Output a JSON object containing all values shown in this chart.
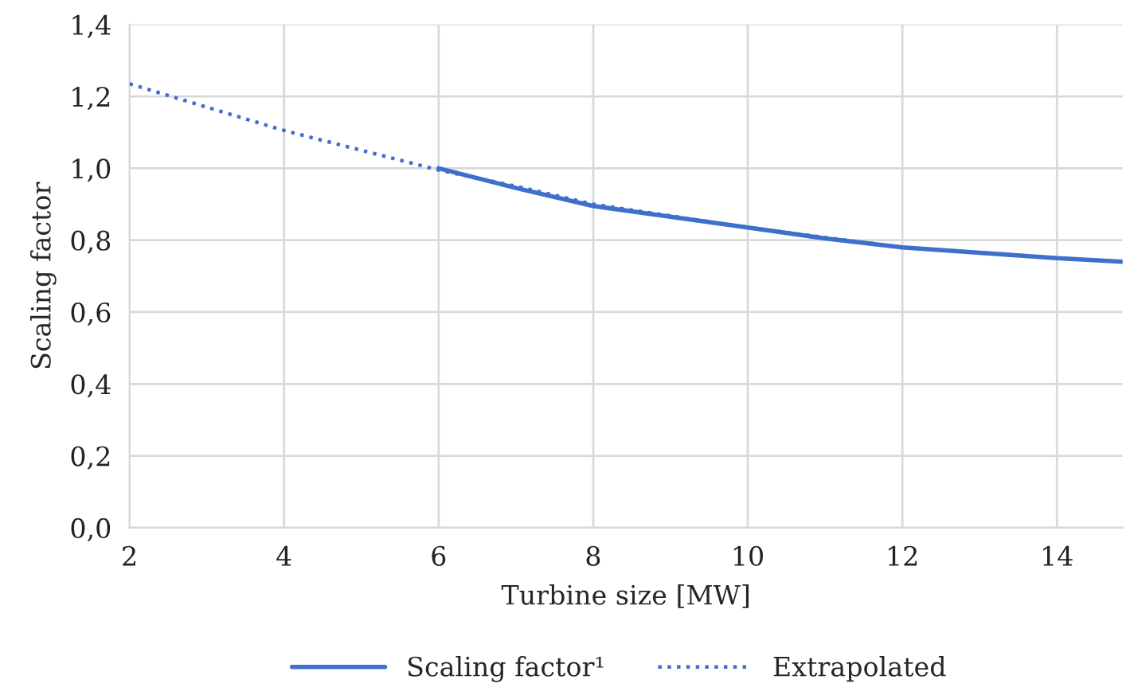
{
  "chart_data": {
    "type": "line",
    "xlabel": "Turbine size [MW]",
    "ylabel": "Scaling factor",
    "xlim": [
      2,
      14.85
    ],
    "xticks": [
      2,
      4,
      6,
      8,
      10,
      12,
      14
    ],
    "ylim": [
      0,
      1.4
    ],
    "yticks": [
      {
        "value": 0,
        "label": "0,0"
      },
      {
        "value": 0.2,
        "label": "0,2"
      },
      {
        "value": 0.4,
        "label": "0,4"
      },
      {
        "value": 0.6,
        "label": "0,6"
      },
      {
        "value": 0.8,
        "label": "0,8"
      },
      {
        "value": 1.0,
        "label": "1,0"
      },
      {
        "value": 1.2,
        "label": "1,2"
      },
      {
        "value": 1.4,
        "label": "1,4"
      }
    ],
    "grid": true,
    "legend": "bottom",
    "marker": "none",
    "series": [
      {
        "name": "Scaling factor¹",
        "color": "#3f6fcc",
        "line_style": "solid",
        "x": [
          6,
          7,
          8,
          9,
          10,
          11,
          12,
          13,
          14,
          14.85
        ],
        "values": [
          1.0,
          0.945,
          0.895,
          0.865,
          0.835,
          0.805,
          0.78,
          0.765,
          0.75,
          0.74
        ]
      },
      {
        "name": "Extrapolated",
        "color": "#3f6fcc",
        "line_style": "dotted",
        "x": [
          2,
          3,
          4,
          5,
          6,
          7,
          8,
          10,
          12,
          14,
          14.85
        ],
        "values": [
          1.235,
          1.17,
          1.105,
          1.05,
          0.995,
          0.95,
          0.9,
          0.835,
          0.78,
          0.75,
          0.74
        ]
      }
    ]
  }
}
